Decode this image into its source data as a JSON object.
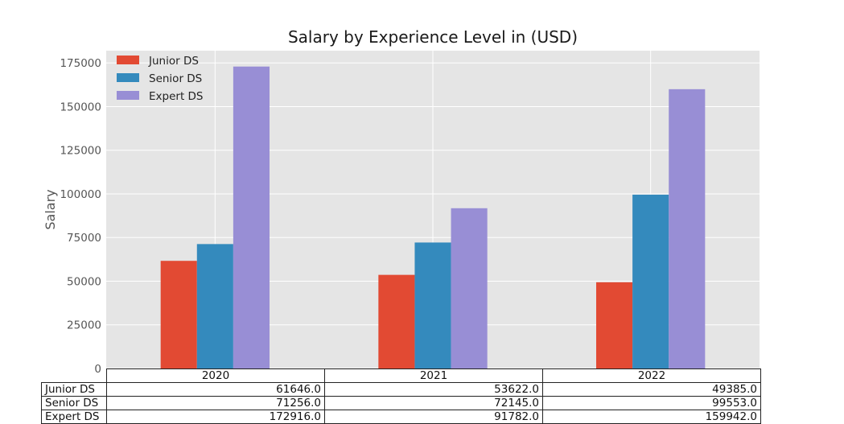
{
  "chart_data": {
    "type": "bar",
    "title": "Salary by Experience Level in (USD)",
    "xlabel": "",
    "ylabel": "Salary",
    "categories": [
      "2020",
      "2021",
      "2022"
    ],
    "series": [
      {
        "name": "Junior DS",
        "values": [
          61646.0,
          53622.0,
          49385.0
        ],
        "color": "#E24A33",
        "labels": [
          "61646.0",
          "53622.0",
          "49385.0"
        ]
      },
      {
        "name": "Senior DS",
        "values": [
          71256.0,
          72145.0,
          99553.0
        ],
        "color": "#348ABD",
        "labels": [
          "71256.0",
          "72145.0",
          "99553.0"
        ]
      },
      {
        "name": "Expert DS",
        "values": [
          172916.0,
          91782.0,
          159942.0
        ],
        "color": "#988ED5",
        "labels": [
          "172916.0",
          "91782.0",
          "159942.0"
        ]
      }
    ],
    "ylim": [
      0,
      182000
    ],
    "yticks": [
      0,
      25000,
      50000,
      75000,
      100000,
      125000,
      150000,
      175000
    ],
    "ytick_labels": [
      "0",
      "25000",
      "50000",
      "75000",
      "100000",
      "125000",
      "150000",
      "175000"
    ],
    "grid": true,
    "legend_position": "top-left",
    "style": "ggplot",
    "background": "#E5E5E5",
    "grid_color": "#FFFFFF",
    "table": {
      "columns": [
        "2020",
        "2021",
        "2022"
      ],
      "rows": [
        {
          "label": "Junior DS",
          "cells": [
            "61646.0",
            "53622.0",
            "49385.0"
          ]
        },
        {
          "label": "Senior DS",
          "cells": [
            "71256.0",
            "72145.0",
            "99553.0"
          ]
        },
        {
          "label": "Expert DS",
          "cells": [
            "172916.0",
            "91782.0",
            "159942.0"
          ]
        }
      ]
    }
  }
}
